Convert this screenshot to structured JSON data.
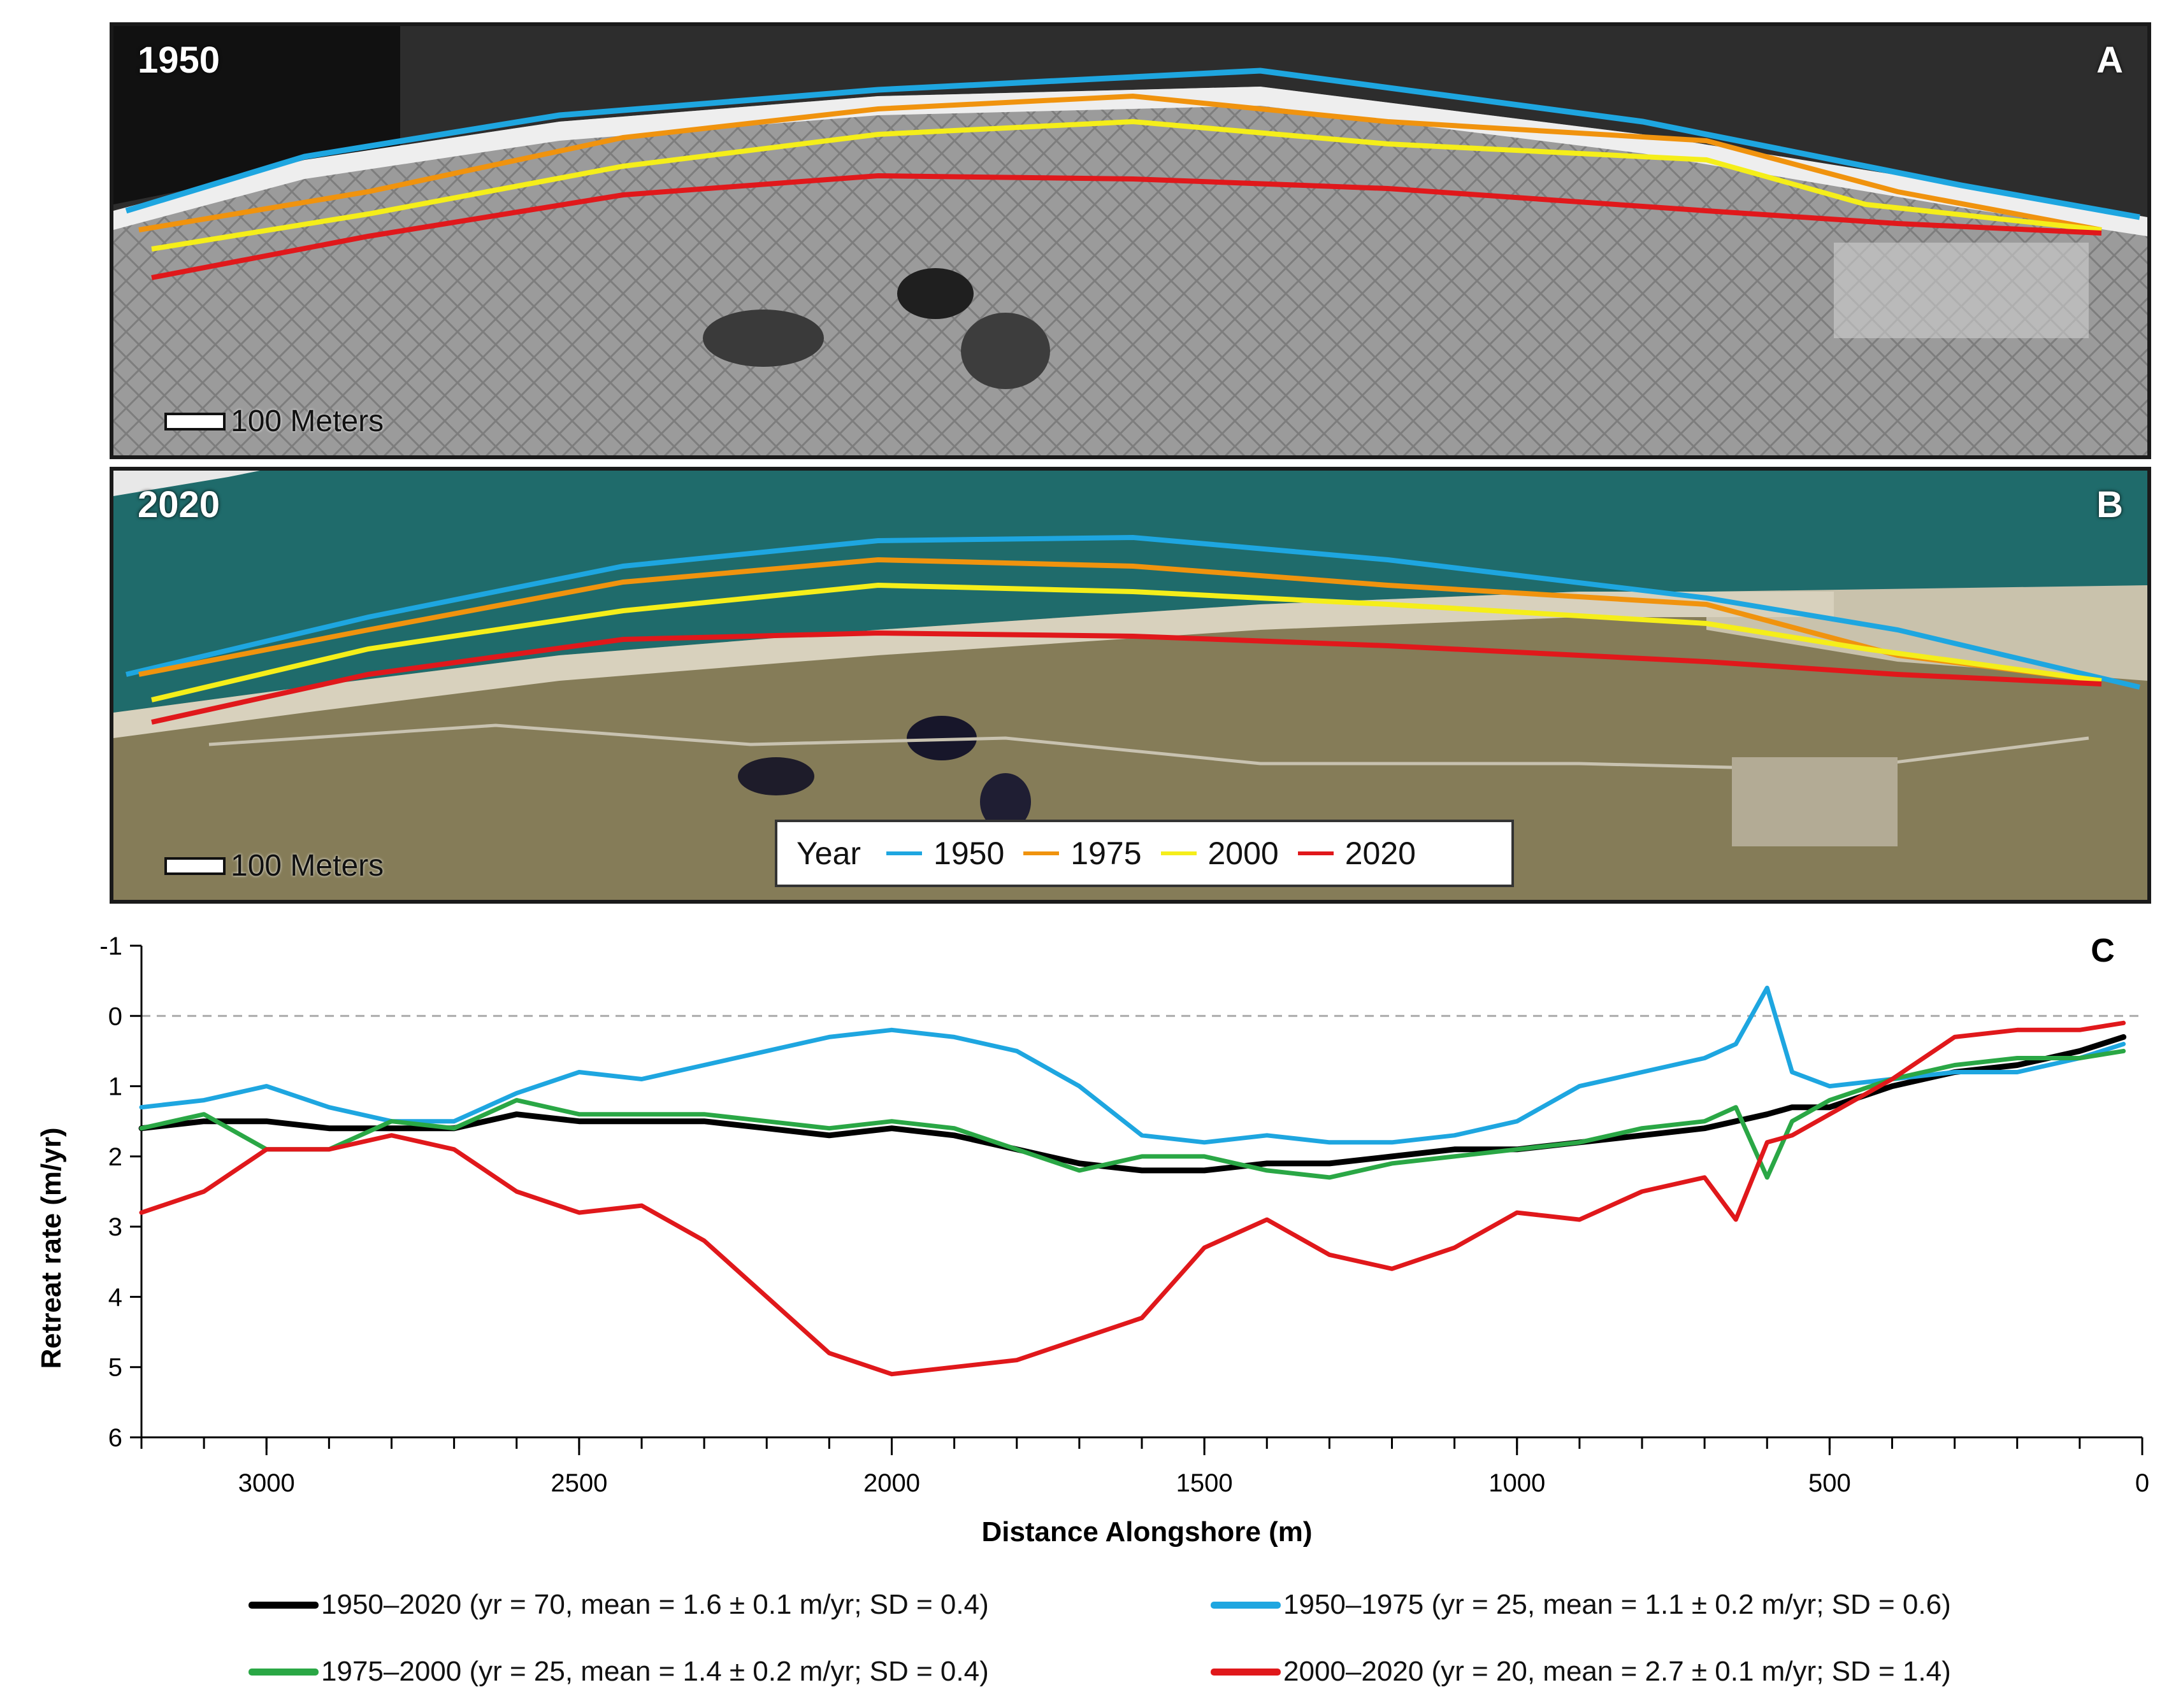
{
  "panel_a": {
    "year": "1950",
    "letter": "A",
    "scale": "100 Meters"
  },
  "panel_b": {
    "year": "2020",
    "letter": "B",
    "scale": "100 Meters"
  },
  "map_legend": {
    "title": "Year",
    "items": [
      {
        "label": "1950",
        "color": "#1ea6e0"
      },
      {
        "label": "1975",
        "color": "#f0930e"
      },
      {
        "label": "2000",
        "color": "#f5ee1a"
      },
      {
        "label": "2020",
        "color": "#e0181b"
      }
    ]
  },
  "chart_data": {
    "type": "line",
    "panel_letter": "C",
    "xlabel": "Distance Alongshore (m)",
    "ylabel": "Retreat rate (m/yr)",
    "xlim": [
      3200,
      0
    ],
    "ylim": [
      -1,
      6
    ],
    "y_inverted": true,
    "reference_line_y": 0,
    "xticks": [
      "3000",
      "2500",
      "2000",
      "1500",
      "1000",
      "500",
      "0"
    ],
    "yticks": [
      "-1",
      "0",
      "1",
      "2",
      "3",
      "4",
      "5",
      "6"
    ],
    "x": [
      3200,
      3100,
      3000,
      2900,
      2800,
      2700,
      2600,
      2500,
      2400,
      2300,
      2200,
      2100,
      2000,
      1900,
      1800,
      1700,
      1600,
      1500,
      1400,
      1300,
      1200,
      1100,
      1000,
      900,
      800,
      700,
      650,
      600,
      560,
      500,
      400,
      300,
      200,
      100,
      30
    ],
    "series": [
      {
        "name": "1950–2020 (yr = 70, mean = 1.6 ± 0.1 m/yr; SD = 0.4)",
        "color": "#000000",
        "values": [
          1.6,
          1.5,
          1.5,
          1.6,
          1.6,
          1.6,
          1.4,
          1.5,
          1.5,
          1.5,
          1.6,
          1.7,
          1.6,
          1.7,
          1.9,
          2.1,
          2.2,
          2.2,
          2.1,
          2.1,
          2.0,
          1.9,
          1.9,
          1.8,
          1.7,
          1.6,
          1.5,
          1.4,
          1.3,
          1.3,
          1.0,
          0.8,
          0.7,
          0.5,
          0.3
        ]
      },
      {
        "name": "1950–1975 (yr = 25, mean = 1.1 ± 0.2 m/yr; SD = 0.6)",
        "color": "#1ea6e0",
        "values": [
          1.3,
          1.2,
          1.0,
          1.3,
          1.5,
          1.5,
          1.1,
          0.8,
          0.9,
          0.7,
          0.5,
          0.3,
          0.2,
          0.3,
          0.5,
          1.0,
          1.7,
          1.8,
          1.7,
          1.8,
          1.8,
          1.7,
          1.5,
          1.0,
          0.8,
          0.6,
          0.4,
          -0.4,
          0.8,
          1.0,
          0.9,
          0.8,
          0.8,
          0.6,
          0.4
        ]
      },
      {
        "name": "1975–2000 (yr = 25, mean = 1.4 ± 0.2 m/yr; SD = 0.4)",
        "color": "#2aa745",
        "values": [
          1.6,
          1.4,
          1.9,
          1.9,
          1.5,
          1.6,
          1.2,
          1.4,
          1.4,
          1.4,
          1.5,
          1.6,
          1.5,
          1.6,
          1.9,
          2.2,
          2.0,
          2.0,
          2.2,
          2.3,
          2.1,
          2.0,
          1.9,
          1.8,
          1.6,
          1.5,
          1.3,
          2.3,
          1.5,
          1.2,
          0.9,
          0.7,
          0.6,
          0.6,
          0.5
        ]
      },
      {
        "name": "2000–2020 (yr = 20, mean = 2.7 ± 0.1 m/yr; SD = 1.4)",
        "color": "#e0181b",
        "values": [
          2.8,
          2.5,
          1.9,
          1.9,
          1.7,
          1.9,
          2.5,
          2.8,
          2.7,
          3.2,
          4.0,
          4.8,
          5.1,
          5.0,
          4.9,
          4.6,
          4.3,
          3.3,
          2.9,
          3.4,
          3.6,
          3.3,
          2.8,
          2.9,
          2.5,
          2.3,
          2.9,
          1.8,
          1.7,
          1.4,
          0.9,
          0.3,
          0.2,
          0.2,
          0.1
        ]
      }
    ]
  }
}
